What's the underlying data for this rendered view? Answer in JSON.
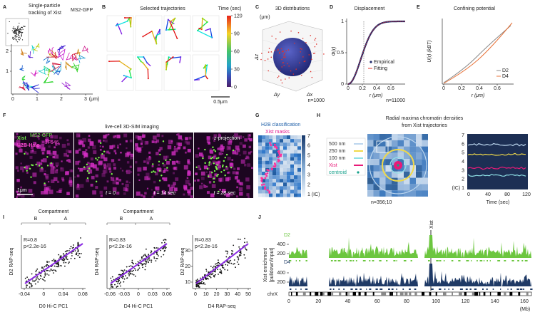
{
  "panels": {
    "a": {
      "letter": "A",
      "title": [
        "Single-particle",
        "tracking of Xist"
      ],
      "title_sup": "MS2-GFP",
      "xticks": [
        0,
        1,
        2,
        3
      ],
      "yticks": [
        1,
        2
      ],
      "unit": "(μm)"
    },
    "b": {
      "letter": "B",
      "title": "Selected trajectories",
      "colorbar_title": "Time (sec)",
      "colorbar_ticks": [
        0,
        30,
        60,
        90,
        120
      ],
      "scale": "0.5μm"
    },
    "c": {
      "letter": "C",
      "title": "3D distributions",
      "unit": "(μm)",
      "axes": [
        "Δx",
        "Δy",
        "Δz"
      ],
      "n": "n=1000"
    },
    "d": {
      "letter": "D",
      "title": "Displacement",
      "ylabel": "Φ(r)",
      "xlabel": "r (μm)",
      "xticks": [
        0,
        0.2,
        0.4,
        0.6
      ],
      "yticks": [
        0,
        0.5,
        1
      ],
      "legend": [
        "Empirical",
        "Fitting"
      ],
      "n": "n=11000"
    },
    "e": {
      "letter": "E",
      "title": "Confining potential",
      "ylabel": "U(r) (kBT)",
      "xlabel": "r (μm)",
      "xticks": [
        0,
        0.2,
        0.4,
        0.6
      ],
      "legend": [
        "D2",
        "D4"
      ]
    },
    "f": {
      "letter": "F",
      "title": "live-cell 3D-SIM imaging",
      "channel1": "Xist",
      "channel1_sup": "MS2-GFP",
      "channel2": "H2B-Halo",
      "channel2_sup": "JF646",
      "projection": "z-projection",
      "scale": "1μm",
      "times": [
        "t = 0",
        "t = 14 sec",
        "t = 28 sec"
      ]
    },
    "g": {
      "letter": "G",
      "title": "H2B classification",
      "overlay": "Xist masks",
      "colorbar_ticks": [
        7,
        6,
        5,
        4,
        3,
        2,
        "1 (IC)"
      ]
    },
    "h": {
      "letter": "H",
      "title": [
        "Radial maxima chromatin densities",
        "from Xist trajectories"
      ],
      "legend": [
        "500 nm",
        "250 nm",
        "100 nm",
        "Xist",
        "centroid"
      ],
      "n": "n=356;10",
      "yticks": [
        7,
        6,
        5,
        4,
        3,
        2,
        "(IC) 1"
      ],
      "xticks": [
        0,
        40,
        80,
        120
      ],
      "xlabel": "Time (sec)"
    },
    "i": {
      "letter": "I",
      "plots": [
        {
          "header": "Compartment",
          "groups": [
            "B",
            "A"
          ],
          "stats": [
            "R=0.8",
            "p<2.2e-16"
          ],
          "ylabel": "D2 RAP-seq",
          "xlabel": "D0 Hi-C PC1",
          "xticks": [
            -0.04,
            0,
            0.04,
            0.08
          ]
        },
        {
          "header": "Compartment",
          "groups": [
            "B",
            "A"
          ],
          "stats": [
            "R=0.83",
            "p<2.2e-16"
          ],
          "ylabel": "D4 RAP-seq",
          "xlabel": "D4 Hi-C PC1",
          "xticks": [
            -0.06,
            -0.03,
            0,
            0.03,
            0.06
          ]
        },
        {
          "stats": [
            "R=0.83",
            "p<2.2e-16"
          ],
          "ylabel": "D2 RAP-seq",
          "xlabel": "D4 RAP-seq",
          "xticks": [
            0,
            10,
            20,
            30,
            40,
            50
          ],
          "yticks": [
            10,
            20,
            30
          ]
        }
      ]
    },
    "j": {
      "letter": "J",
      "marker": "Xist",
      "tracks": [
        {
          "name": "D2",
          "yticks": [
            200,
            400
          ]
        },
        {
          "name": "D4",
          "yticks": [
            200,
            400
          ]
        }
      ],
      "ylabel": [
        "Xist enrichment",
        "[pulldown/input]"
      ],
      "chromosome": "chrX",
      "xticks": [
        0,
        20,
        40,
        60,
        80,
        100,
        120,
        140,
        160
      ],
      "xunit": "(Mb)"
    }
  }
}
